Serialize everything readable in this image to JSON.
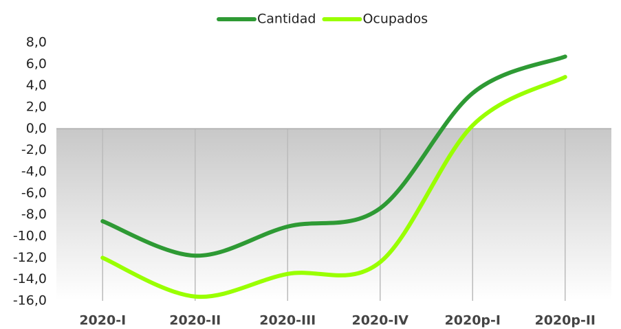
{
  "chart_data": {
    "type": "line",
    "categories": [
      "2020-I",
      "2020-II",
      "2020-III",
      "2020-IV",
      "2020p-I",
      "2020p-II"
    ],
    "series": [
      {
        "name": "Cantidad",
        "color": "#2e9a34",
        "values": [
          -8.6,
          -11.8,
          -9.1,
          -7.4,
          3.3,
          6.7
        ]
      },
      {
        "name": "Ocupados",
        "color": "#99ff00",
        "values": [
          -12.0,
          -15.6,
          -13.5,
          -12.4,
          0.3,
          4.8
        ]
      }
    ],
    "ylim": [
      -16,
      8
    ],
    "yticks": [
      {
        "value": -16,
        "label": "-16,0"
      },
      {
        "value": -14,
        "label": "-14,0"
      },
      {
        "value": -12,
        "label": "-12,0"
      },
      {
        "value": -10,
        "label": "-10,0"
      },
      {
        "value": -8,
        "label": "-8,0"
      },
      {
        "value": -6,
        "label": "-6,0"
      },
      {
        "value": -4,
        "label": "-4,0"
      },
      {
        "value": -2,
        "label": "-2,0"
      },
      {
        "value": 0,
        "label": "0,0"
      },
      {
        "value": 2,
        "label": "2,0"
      },
      {
        "value": 4,
        "label": "4,0"
      },
      {
        "value": 6,
        "label": "6,0"
      },
      {
        "value": 8,
        "label": "8,0"
      }
    ],
    "legend": "top",
    "smooth": true
  }
}
